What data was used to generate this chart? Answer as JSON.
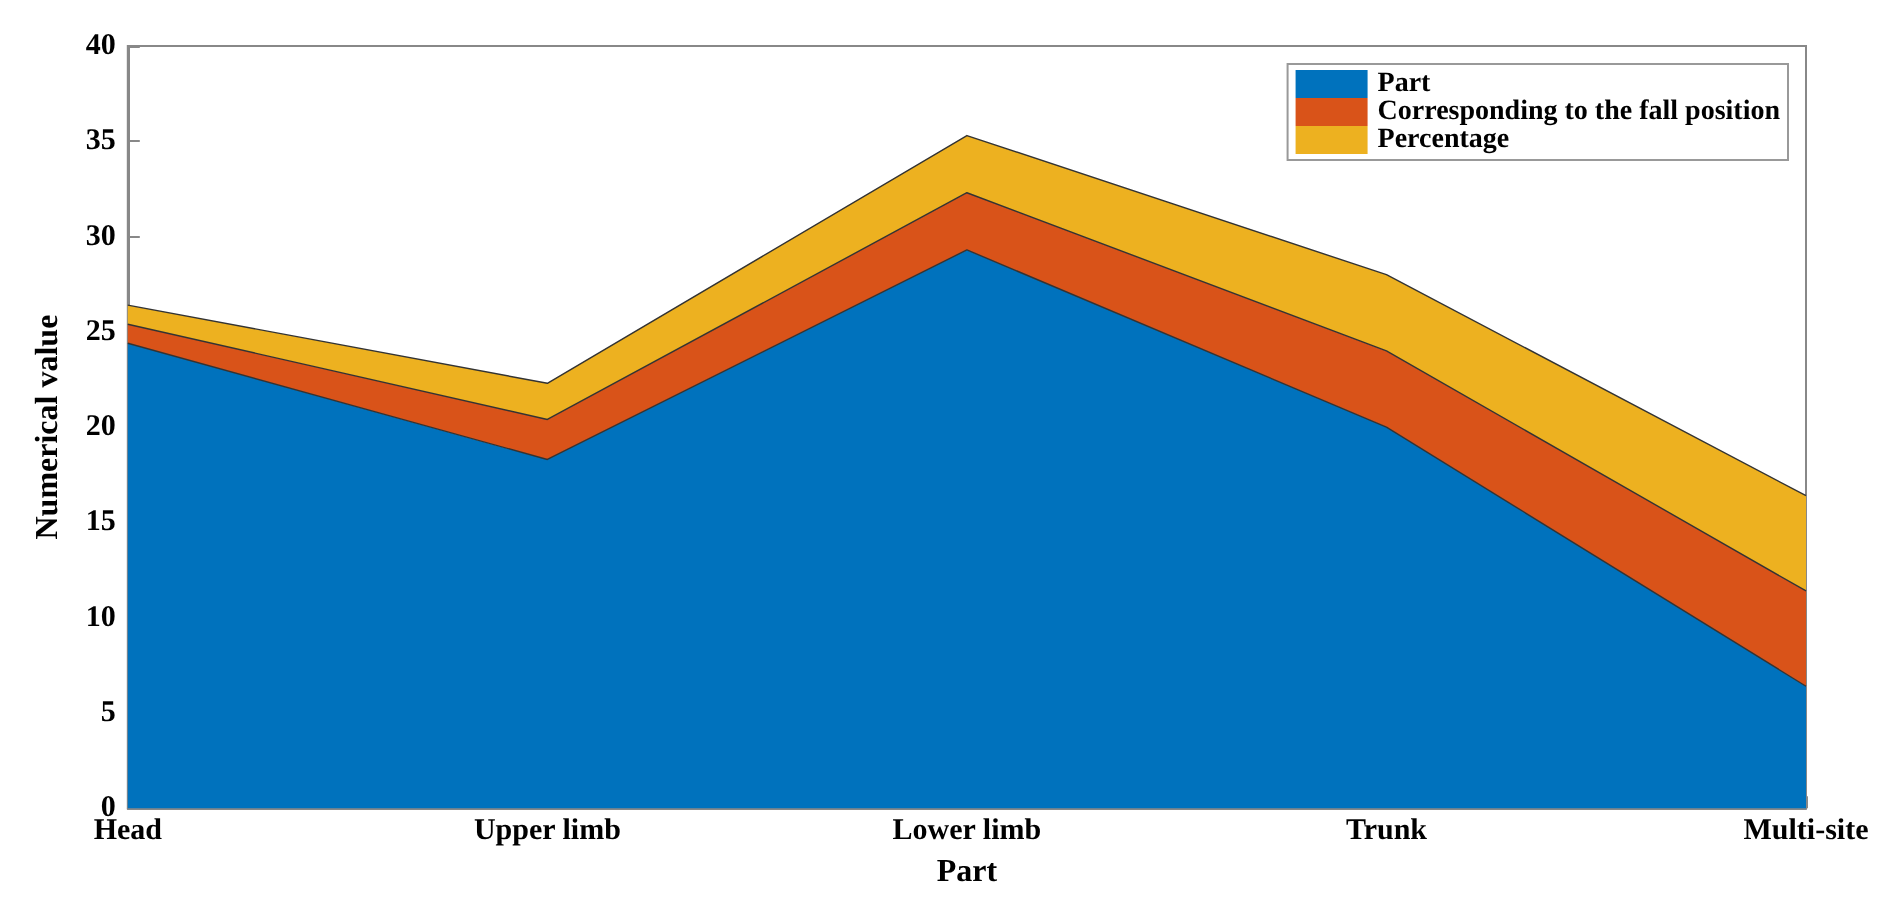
{
  "chart_data": {
    "type": "area",
    "stacked": true,
    "xlabel": "Part",
    "ylabel": "Numerical value",
    "categories": [
      "Head",
      "Upper limb",
      "Lower limb",
      "Trunk",
      "Multi-site"
    ],
    "series": [
      {
        "name": "Part",
        "color": "#0072bd",
        "values": [
          24.4,
          18.3,
          29.3,
          20,
          6.4
        ]
      },
      {
        "name": "Corresponding to the fall position",
        "color": "#d95319",
        "values": [
          1,
          2.1,
          3,
          4,
          5
        ]
      },
      {
        "name": "Percentage",
        "color": "#edb120",
        "values": [
          1,
          1.9,
          3,
          4,
          5
        ]
      }
    ],
    "ylim": [
      0,
      40
    ],
    "yticks": [
      0,
      5,
      10,
      15,
      20,
      25,
      30,
      35,
      40
    ],
    "grid": false,
    "legend": "top right"
  }
}
